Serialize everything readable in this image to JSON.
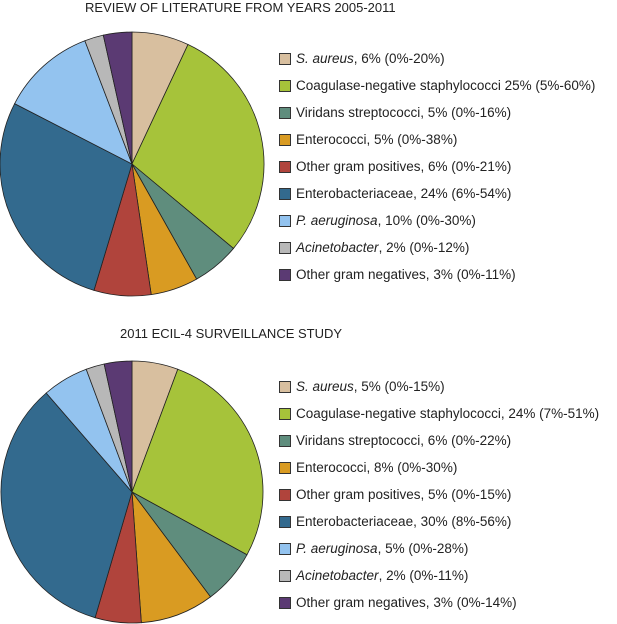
{
  "chart_data": [
    {
      "type": "pie",
      "title": "REVIEW OF LITERATURE FROM YEARS 2005-2011",
      "legend_position": "right",
      "slices": [
        {
          "name": "S. aureus",
          "italic": true,
          "rest": ", 6% (0%-20%)",
          "value": 6,
          "color": "#d8bf9f"
        },
        {
          "name": "Coagulase-negative staphylococci 25% (5%-60%)",
          "italic": false,
          "rest": "",
          "value": 25,
          "color": "#a6c33a"
        },
        {
          "name": "Viridans streptococci, 5% (0%-16%)",
          "italic": false,
          "rest": "",
          "value": 5,
          "color": "#5f8d7d"
        },
        {
          "name": "Enterococci, 5% (0%-38%)",
          "italic": false,
          "rest": "",
          "value": 5,
          "color": "#d99b22"
        },
        {
          "name": "Other gram positives, 6% (0%-21%)",
          "italic": false,
          "rest": "",
          "value": 6,
          "color": "#b0443c"
        },
        {
          "name": "Enterobacteriaceae, 24% (6%-54%)",
          "italic": false,
          "rest": "",
          "value": 24,
          "color": "#336a8e"
        },
        {
          "name": "P. aeruginosa",
          "italic": true,
          "rest": ", 10% (0%-30%)",
          "value": 10,
          "color": "#93c3ef"
        },
        {
          "name": "Acinetobacter",
          "italic": true,
          "rest": ", 2% (0%-12%)",
          "value": 2,
          "color": "#b8b8b8"
        },
        {
          "name": "Other gram negatives, 3% (0%-11%)",
          "italic": false,
          "rest": "",
          "value": 3,
          "color": "#5b3a73"
        }
      ]
    },
    {
      "type": "pie",
      "title": "2011 ECIL-4 SURVEILLANCE STUDY",
      "legend_position": "right",
      "slices": [
        {
          "name": "S. aureus",
          "italic": true,
          "rest": ", 5% (0%-15%)",
          "value": 5,
          "color": "#d8bf9f"
        },
        {
          "name": "Coagulase-negative staphylococci, 24% (7%-51%)",
          "italic": false,
          "rest": "",
          "value": 24,
          "color": "#a6c33a"
        },
        {
          "name": "Viridans streptococci, 6% (0%-22%)",
          "italic": false,
          "rest": "",
          "value": 6,
          "color": "#5f8d7d"
        },
        {
          "name": "Enterococci, 8% (0%-30%)",
          "italic": false,
          "rest": "",
          "value": 8,
          "color": "#d99b22"
        },
        {
          "name": "Other gram positives, 5% (0%-15%)",
          "italic": false,
          "rest": "",
          "value": 5,
          "color": "#b0443c"
        },
        {
          "name": "Enterobacteriaceae, 30% (8%-56%)",
          "italic": false,
          "rest": "",
          "value": 30,
          "color": "#336a8e"
        },
        {
          "name": "P. aeruginosa",
          "italic": true,
          "rest": ", 5% (0%-28%)",
          "value": 5,
          "color": "#93c3ef"
        },
        {
          "name": "Acinetobacter",
          "italic": true,
          "rest": ", 2% (0%-11%)",
          "value": 2,
          "color": "#b8b8b8"
        },
        {
          "name": "Other gram negatives, 3% (0%-14%)",
          "italic": false,
          "rest": "",
          "value": 3,
          "color": "#5b3a73"
        }
      ]
    }
  ]
}
